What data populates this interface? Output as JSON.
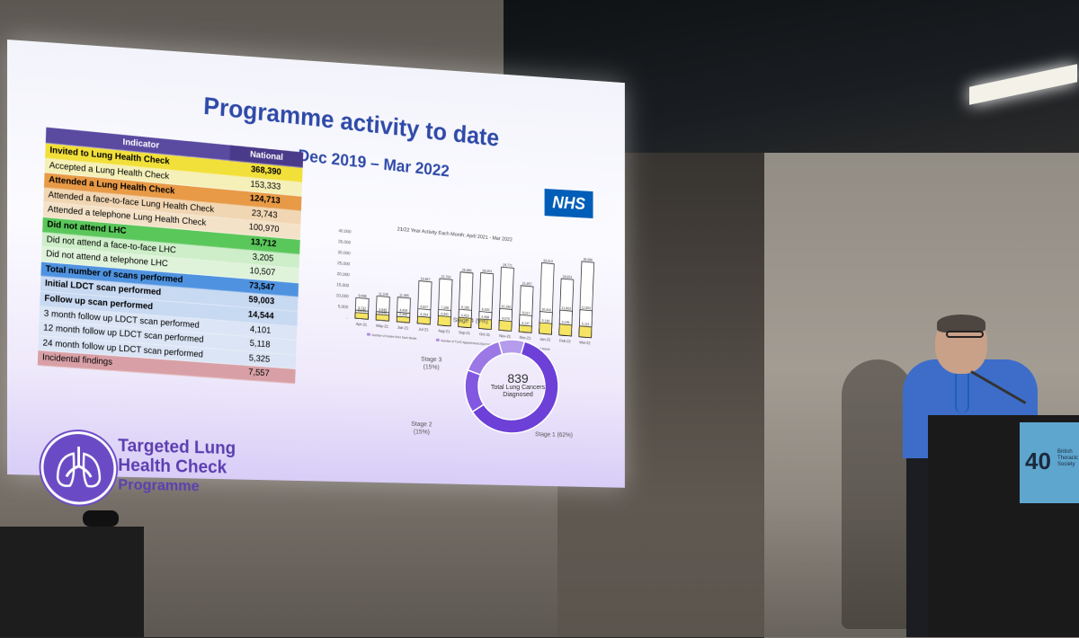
{
  "slide": {
    "title": "Programme activity to date",
    "subtitle": "Dec 2019 – Mar 2022",
    "nhs_logo": "NHS"
  },
  "table": {
    "header": {
      "indicator": "Indicator",
      "national": "National"
    },
    "rows": [
      {
        "label": "Invited to Lung Health Check",
        "value": "368,390",
        "color": "#f2e03a"
      },
      {
        "label": "Accepted a Lung Health Check",
        "value": "153,333",
        "color": "#f5f0b8"
      },
      {
        "label": "Attended a Lung Health Check",
        "value": "124,713",
        "color": "#e89a46"
      },
      {
        "label": "Attended a face-to-face Lung Health Check",
        "value": "23,743",
        "color": "#f1d6b3"
      },
      {
        "label": "Attended a telephone Lung Health Check",
        "value": "100,970",
        "color": "#f3e2c8"
      },
      {
        "label": "Did not attend LHC",
        "value": "13,712",
        "color": "#5ac75a"
      },
      {
        "label": "Did not attend a face-to-face LHC",
        "value": "3,205",
        "color": "#cdeec8"
      },
      {
        "label": "Did not attend a telephone LHC",
        "value": "10,507",
        "color": "#dff3da"
      },
      {
        "label": "Total number of scans performed",
        "value": "73,547",
        "color": "#4f93e0"
      },
      {
        "label": "Initial LDCT scan performed",
        "value": "59,003",
        "color": "#c8d9f2"
      },
      {
        "label": "Follow up scan performed",
        "value": "14,544",
        "color": "#c8d9f2"
      },
      {
        "label": "3 month follow up LDCT scan performed",
        "value": "4,101",
        "color": "#dbe5f5"
      },
      {
        "label": "12 month follow up LDCT scan performed",
        "value": "5,118",
        "color": "#dbe5f5"
      },
      {
        "label": "24 month follow up LDCT scan performed",
        "value": "5,325",
        "color": "#dbe5f5"
      },
      {
        "label": "Incidental findings",
        "value": "7,557",
        "color": "#d8a0a6"
      }
    ]
  },
  "logo": {
    "line1": "Targeted Lung",
    "line2": "Health Check",
    "line3": "Programme"
  },
  "podium": {
    "number": "40",
    "text": "British Thoracic Society"
  },
  "chart_data": [
    {
      "type": "bar",
      "title": "21/22 Year Activity Each Month: April 2021 - Mar 2022",
      "categories": [
        "Apr-21",
        "May-21",
        "Jun-21",
        "Jul-21",
        "Aug-21",
        "Sep-21",
        "Oct-21",
        "Nov-21",
        "Dec-21",
        "Jan-22",
        "Feb-22",
        "Mar-22"
      ],
      "series": [
        {
          "name": "Number of Invites Sent Each Month",
          "values": [
            9496,
            11105,
            11385,
            19847,
            21762,
            25686,
            26201,
            29771,
            21857,
            33513,
            26831,
            35886
          ]
        },
        {
          "name": "Number of TLHC Appointments Each Month",
          "values": [
            3737,
            3845,
            4435,
            6827,
            7286,
            8185,
            8002,
            10190,
            8017,
            10416,
            11863,
            12882
          ]
        },
        {
          "name": "Number of CT Scans Each Month",
          "values": [
            2645,
            2640,
            2445,
            3254,
            4341,
            4410,
            4496,
            4578,
            3137,
            5130,
            5195,
            5115
          ]
        }
      ],
      "ylim": [
        0,
        40000
      ],
      "yticks": [
        "40,000",
        "35,000",
        "30,000",
        "25,000",
        "20,000",
        "15,000",
        "10,000",
        "5,000",
        "-"
      ],
      "colors": [
        "#ffffff",
        "#ffffff",
        "#f4e04a"
      ]
    },
    {
      "type": "pie",
      "center_value": "839",
      "center_label": "Total Lung Cancers Diagnosed",
      "categories": [
        "Stage 1 (62%)",
        "Stage 2 (15%)",
        "Stage 3 (15%)",
        "Stage 4 (9%)"
      ],
      "values": [
        62,
        15,
        15,
        9
      ],
      "colors": [
        "#6d40d8",
        "#8358e0",
        "#9c78e6",
        "#b49bec"
      ]
    }
  ]
}
